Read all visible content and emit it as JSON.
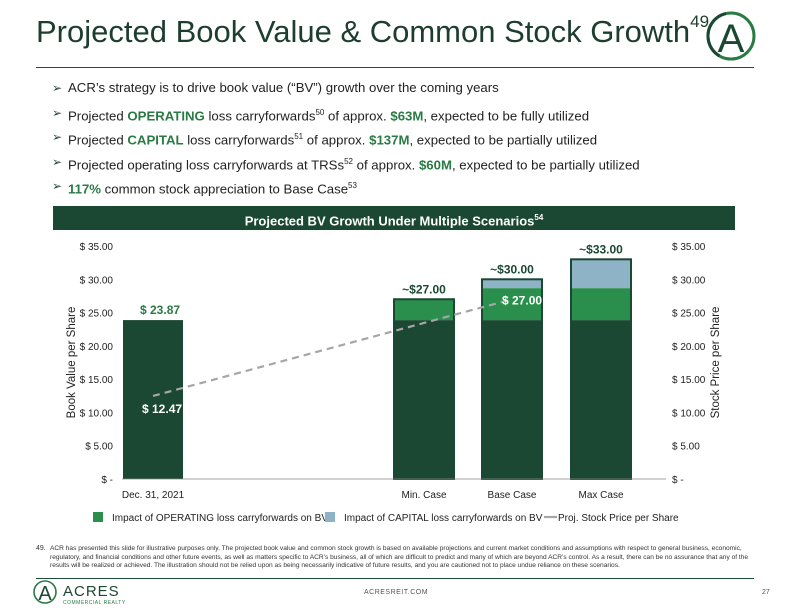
{
  "header": {
    "title": "Projected Book Value & Common Stock Growth",
    "title_sup": "49"
  },
  "bullets": [
    {
      "parts": [
        {
          "t": "ACR’s strategy is to drive book value (“BV”) growth over the coming years"
        }
      ]
    },
    {
      "parts": [
        {
          "t": "Projected "
        },
        {
          "t": "OPERATING",
          "g": true
        },
        {
          "t": " loss carryforwards"
        },
        {
          "t": "50",
          "sup": true
        },
        {
          "t": " of approx. "
        },
        {
          "t": "$63M",
          "g": true
        },
        {
          "t": ", expected to be fully utilized"
        }
      ]
    },
    {
      "parts": [
        {
          "t": "Projected "
        },
        {
          "t": "CAPITAL",
          "g": true
        },
        {
          "t": " loss carryforwards"
        },
        {
          "t": "51",
          "sup": true
        },
        {
          "t": " of approx. "
        },
        {
          "t": "$137M",
          "g": true
        },
        {
          "t": ", expected to be partially utilized"
        }
      ]
    },
    {
      "parts": [
        {
          "t": "Projected operating loss carryforwards at TRSs"
        },
        {
          "t": "52",
          "sup": true
        },
        {
          "t": " of approx. "
        },
        {
          "t": "$60M",
          "g": true
        },
        {
          "t": ", expected to be partially utilized"
        }
      ]
    },
    {
      "parts": [
        {
          "t": "117%",
          "g": true
        },
        {
          "t": " common stock appreciation to Base Case"
        },
        {
          "t": "53",
          "sup": true
        }
      ]
    }
  ],
  "chart_header": {
    "label": "Projected BV Growth Under Multiple Scenarios",
    "sup": "54"
  },
  "chart_data": {
    "type": "bar",
    "stacked": true,
    "categories": [
      "Dec. 31, 2021",
      "Min. Case",
      "Base Case",
      "Max Case"
    ],
    "series": [
      {
        "name": "",
        "color": "#1b4832",
        "values": [
          23.87,
          23.87,
          23.87,
          23.87
        ]
      },
      {
        "name": "Impact of OPERATING loss carryforwards on BV",
        "color": "#2a8f4c",
        "values": [
          0,
          3.13,
          4.8,
          4.8
        ]
      },
      {
        "name": "Impact of CAPITAL loss carryforwards on BV",
        "color": "#8eb3c6",
        "values": [
          0,
          0,
          1.33,
          4.33
        ]
      }
    ],
    "line": {
      "name": "Proj. Stock Price per Share",
      "color": "#a6a6a6",
      "from": {
        "category": "Dec. 31, 2021",
        "value": 12.47
      },
      "to": {
        "category": "Base Case",
        "value": 27.0
      }
    },
    "bar_labels": [
      "$ 23.87",
      "~$27.00",
      "~$30.00",
      "~$33.00"
    ],
    "point_labels": [
      {
        "category": "Dec. 31, 2021",
        "text": "$ 12.47"
      },
      {
        "category": "Base Case",
        "text": "$ 27.00"
      }
    ],
    "ylabel_left": "Book Value per Share",
    "ylabel_right": "Stock Price per Share",
    "yticks": [
      "$ -",
      "$ 5.00",
      "$ 10.00",
      "$ 15.00",
      "$ 20.00",
      "$ 25.00",
      "$ 30.00",
      "$ 35.00"
    ],
    "ylim": [
      0,
      35
    ],
    "legend_placement": "bottom",
    "legend": [
      {
        "label": "Impact of OPERATING loss carryforwards on BV",
        "color": "#2a8f4c",
        "kind": "box"
      },
      {
        "label": "Impact of CAPITAL loss carryforwards on BV",
        "color": "#8eb3c6",
        "kind": "box"
      },
      {
        "label": "Proj. Stock Price per Share",
        "color": "#a6a6a6",
        "kind": "line"
      }
    ]
  },
  "footnote": {
    "number": "49.",
    "text": "ACR has presented this slide for illustrative purposes only. The projected book value and common stock growth is based on available projections and current market conditions and assumptions with respect to general business, economic, regulatory, and financial conditions and other future events, as well as matters specific to ACR’s business, all of which are difficult to predict and many of which are beyond ACR’s control. As a result, there can be no assurance that any of the results will be realized or achieved. The illustration should not be relied upon as being necessarily indicative of future results, and you are cautioned not to place undue reliance on these scenarios."
  },
  "footer": {
    "brand": "ACRES",
    "brand_sub": "COMMERCIAL REALTY",
    "url": "ACRESREIT.COM",
    "page": "27"
  },
  "logo_letter": "A"
}
